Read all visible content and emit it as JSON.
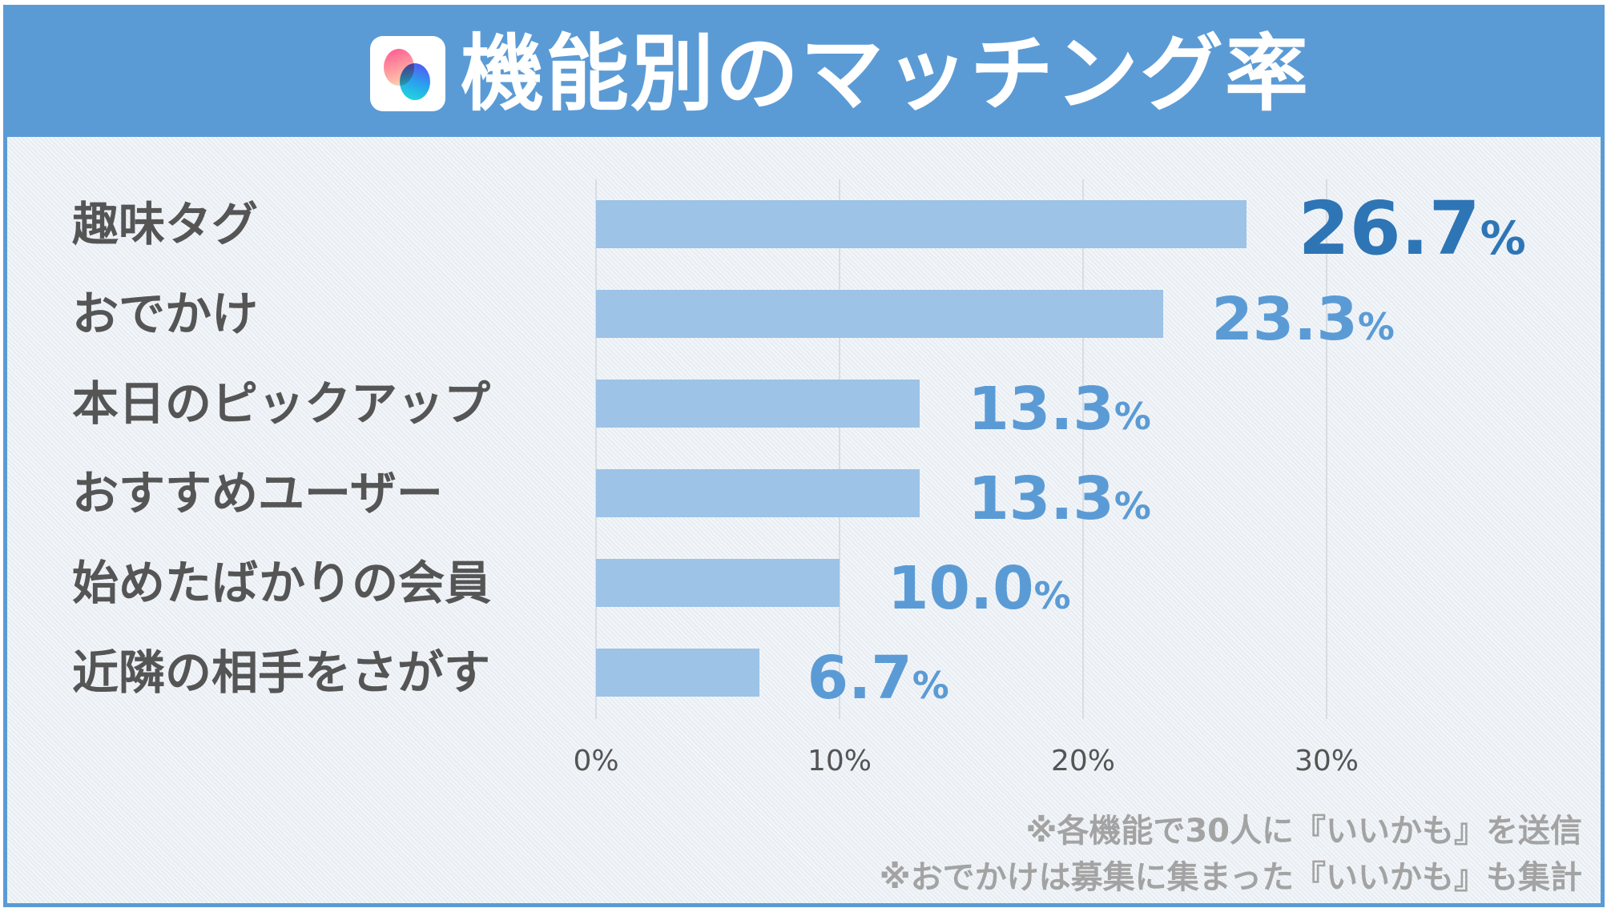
{
  "header": {
    "title": "機能別のマッチング率",
    "logo_icon": "app-logo-icon"
  },
  "chart_data": {
    "type": "bar",
    "orientation": "horizontal",
    "title": "機能別のマッチング率",
    "categories": [
      "趣味タグ",
      "おでかけ",
      "本日のピックアップ",
      "おすすめユーザー",
      "始めたばかりの会員",
      "近隣の相手をさがす"
    ],
    "values": [
      26.7,
      23.3,
      13.3,
      13.3,
      10.0,
      6.7
    ],
    "value_labels": [
      "26.7",
      "23.3",
      "13.3",
      "13.3",
      "10.0",
      "6.7"
    ],
    "unit": "%",
    "xlim": [
      0,
      30
    ],
    "xticks": [
      "0%",
      "10%",
      "20%",
      "30%"
    ],
    "grid": true,
    "colors": {
      "bar": "#9dc3e6",
      "label": "#5b9bd5",
      "highlight_label": "#2e75b6",
      "header": "#5b9bd5"
    }
  },
  "footnotes": [
    "※各機能で30人に『いいかも』を送信",
    "※おでかけは募集に集まった『いいかも』も集計"
  ]
}
